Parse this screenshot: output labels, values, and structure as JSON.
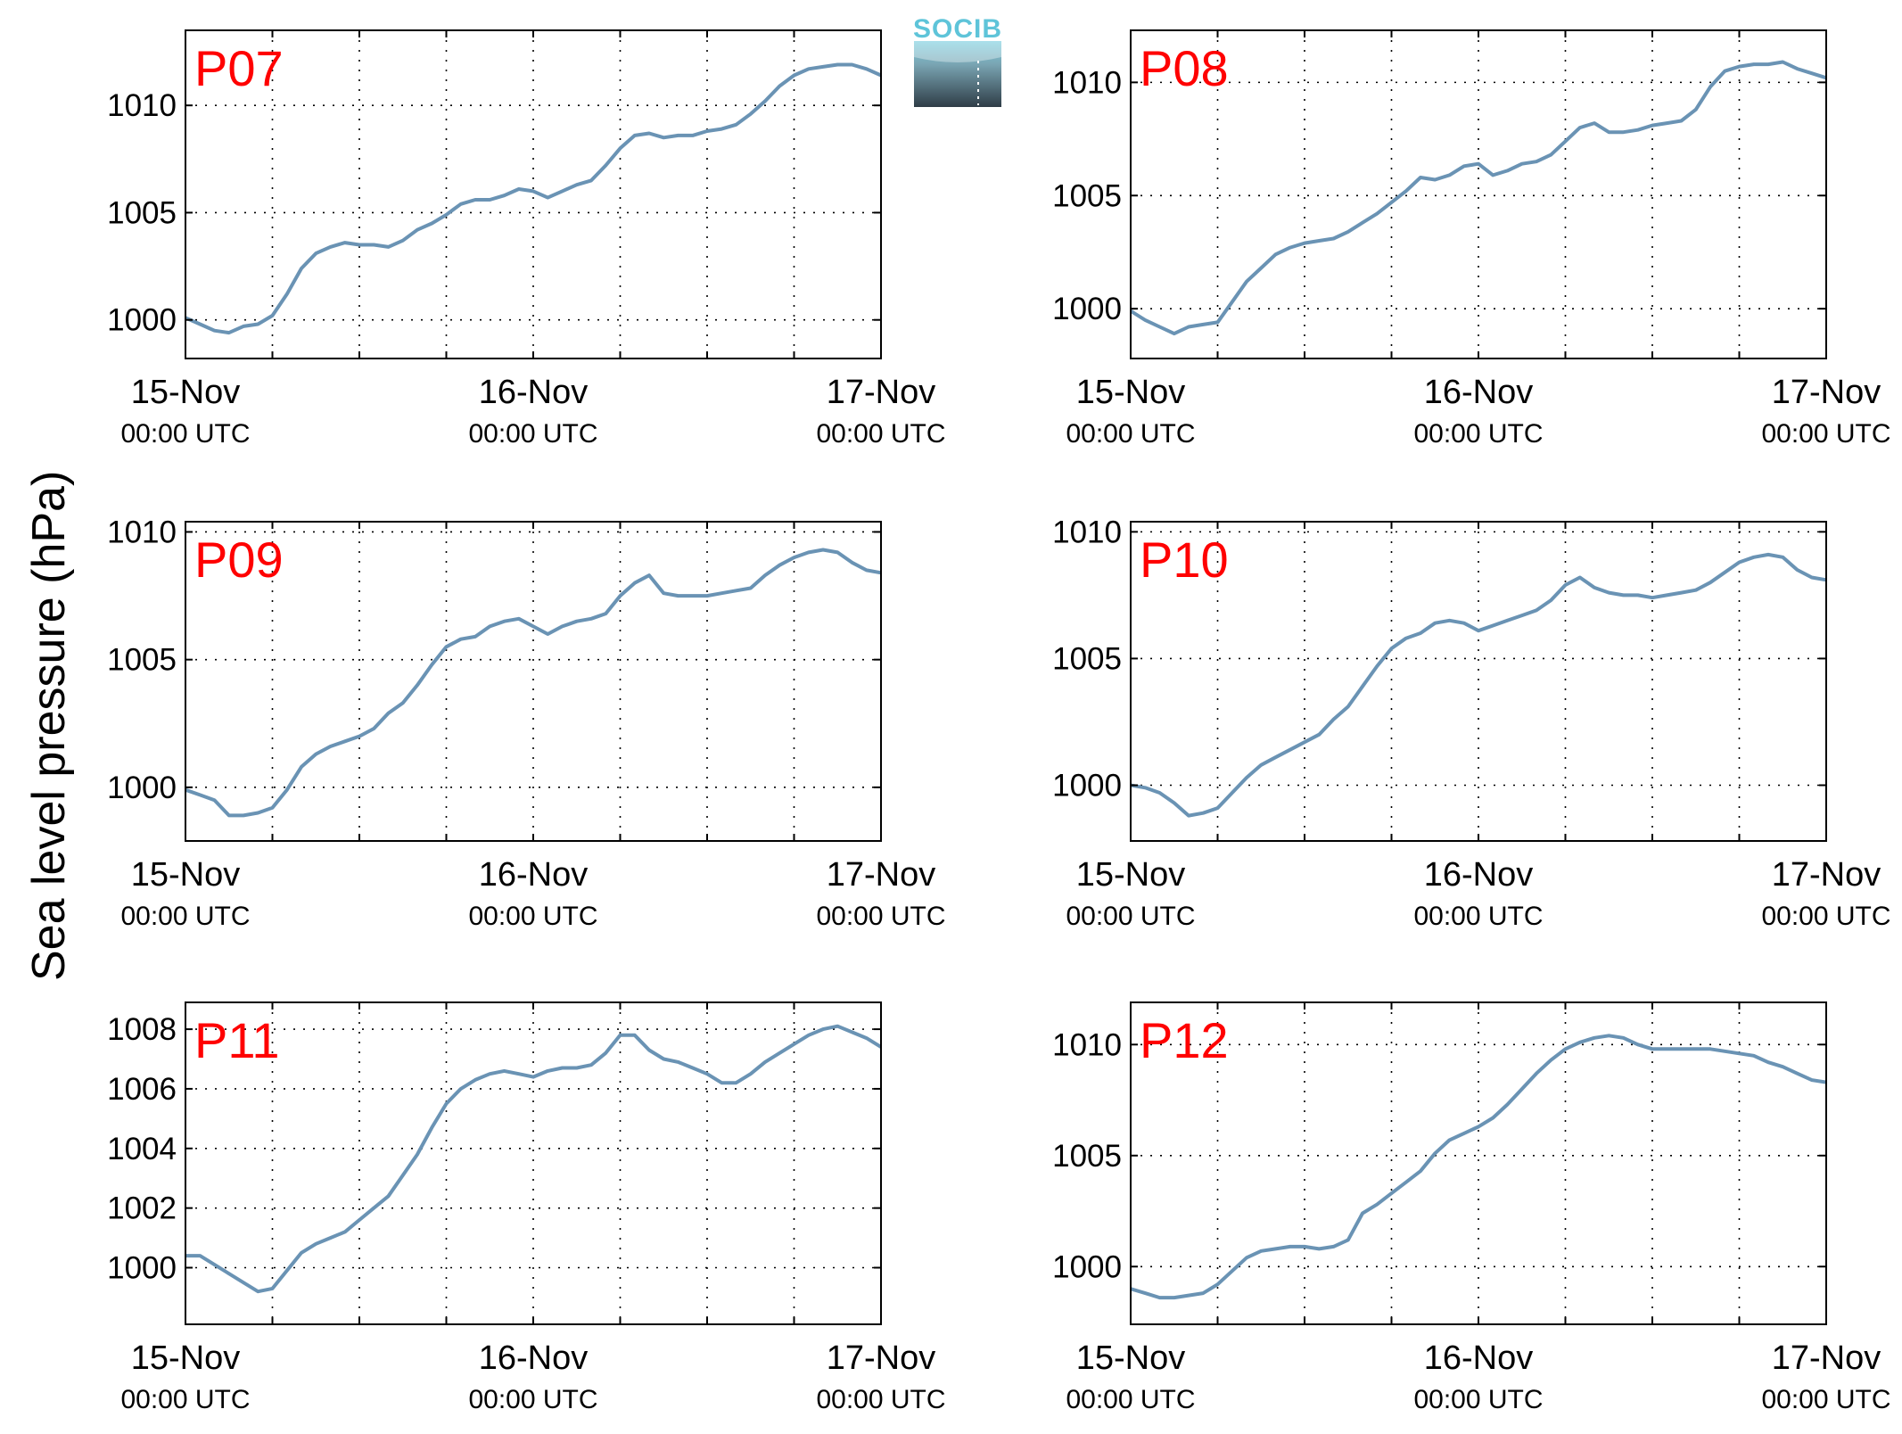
{
  "figure": {
    "ylabel": "Sea level pressure (hPa)",
    "logo_text": "SOCIB",
    "line_color": "#6a93b4",
    "label_color": "#ff0000"
  },
  "chart_data": [
    {
      "type": "line",
      "label": "P07",
      "x_ticks": [
        "15-Nov",
        "16-Nov",
        "17-Nov"
      ],
      "x_tick_sublabel": "00:00 UTC",
      "xlim": [
        0,
        48
      ],
      "ylim": [
        998.2,
        1013.5
      ],
      "y_ticks": [
        1000,
        1005,
        1010
      ],
      "grid": true,
      "x": [
        0,
        1,
        2,
        3,
        4,
        5,
        6,
        7,
        8,
        9,
        10,
        11,
        12,
        13,
        14,
        15,
        16,
        17,
        18,
        19,
        20,
        21,
        22,
        23,
        24,
        25,
        26,
        27,
        28,
        29,
        30,
        31,
        32,
        33,
        34,
        35,
        36,
        37,
        38,
        39,
        40,
        41,
        42,
        43,
        44,
        45,
        46,
        47,
        48
      ],
      "y": [
        1000.1,
        999.8,
        999.5,
        999.4,
        999.7,
        999.8,
        1000.2,
        1001.2,
        1002.4,
        1003.1,
        1003.4,
        1003.6,
        1003.5,
        1003.5,
        1003.4,
        1003.7,
        1004.2,
        1004.5,
        1004.9,
        1005.4,
        1005.6,
        1005.6,
        1005.8,
        1006.1,
        1006.0,
        1005.7,
        1006.0,
        1006.3,
        1006.5,
        1007.2,
        1008.0,
        1008.6,
        1008.7,
        1008.5,
        1008.6,
        1008.6,
        1008.8,
        1008.9,
        1009.1,
        1009.6,
        1010.2,
        1010.9,
        1011.4,
        1011.7,
        1011.8,
        1011.9,
        1011.9,
        1011.7,
        1011.4
      ]
    },
    {
      "type": "line",
      "label": "P08",
      "x_ticks": [
        "15-Nov",
        "16-Nov",
        "17-Nov"
      ],
      "x_tick_sublabel": "00:00 UTC",
      "xlim": [
        0,
        48
      ],
      "ylim": [
        997.8,
        1012.3
      ],
      "y_ticks": [
        1000,
        1005,
        1010
      ],
      "grid": true,
      "x": [
        0,
        1,
        2,
        3,
        4,
        5,
        6,
        7,
        8,
        9,
        10,
        11,
        12,
        13,
        14,
        15,
        16,
        17,
        18,
        19,
        20,
        21,
        22,
        23,
        24,
        25,
        26,
        27,
        28,
        29,
        30,
        31,
        32,
        33,
        34,
        35,
        36,
        37,
        38,
        39,
        40,
        41,
        42,
        43,
        44,
        45,
        46,
        47,
        48
      ],
      "y": [
        999.9,
        999.5,
        999.2,
        998.9,
        999.2,
        999.3,
        999.4,
        1000.3,
        1001.2,
        1001.8,
        1002.4,
        1002.7,
        1002.9,
        1003.0,
        1003.1,
        1003.4,
        1003.8,
        1004.2,
        1004.7,
        1005.2,
        1005.8,
        1005.7,
        1005.9,
        1006.3,
        1006.4,
        1005.9,
        1006.1,
        1006.4,
        1006.5,
        1006.8,
        1007.4,
        1008.0,
        1008.2,
        1007.8,
        1007.8,
        1007.9,
        1008.1,
        1008.2,
        1008.3,
        1008.8,
        1009.8,
        1010.5,
        1010.7,
        1010.8,
        1010.8,
        1010.9,
        1010.6,
        1010.4,
        1010.2
      ]
    },
    {
      "type": "line",
      "label": "P09",
      "x_ticks": [
        "15-Nov",
        "16-Nov",
        "17-Nov"
      ],
      "x_tick_sublabel": "00:00 UTC",
      "xlim": [
        0,
        48
      ],
      "ylim": [
        997.9,
        1010.4
      ],
      "y_ticks": [
        1000,
        1005,
        1010
      ],
      "grid": true,
      "x": [
        0,
        1,
        2,
        3,
        4,
        5,
        6,
        7,
        8,
        9,
        10,
        11,
        12,
        13,
        14,
        15,
        16,
        17,
        18,
        19,
        20,
        21,
        22,
        23,
        24,
        25,
        26,
        27,
        28,
        29,
        30,
        31,
        32,
        33,
        34,
        35,
        36,
        37,
        38,
        39,
        40,
        41,
        42,
        43,
        44,
        45,
        46,
        47,
        48
      ],
      "y": [
        999.9,
        999.7,
        999.5,
        998.9,
        998.9,
        999.0,
        999.2,
        999.9,
        1000.8,
        1001.3,
        1001.6,
        1001.8,
        1002.0,
        1002.3,
        1002.9,
        1003.3,
        1004.0,
        1004.8,
        1005.5,
        1005.8,
        1005.9,
        1006.3,
        1006.5,
        1006.6,
        1006.3,
        1006.0,
        1006.3,
        1006.5,
        1006.6,
        1006.8,
        1007.5,
        1008.0,
        1008.3,
        1007.6,
        1007.5,
        1007.5,
        1007.5,
        1007.6,
        1007.7,
        1007.8,
        1008.3,
        1008.7,
        1009.0,
        1009.2,
        1009.3,
        1009.2,
        1008.8,
        1008.5,
        1008.4
      ]
    },
    {
      "type": "line",
      "label": "P10",
      "x_ticks": [
        "15-Nov",
        "16-Nov",
        "17-Nov"
      ],
      "x_tick_sublabel": "00:00 UTC",
      "xlim": [
        0,
        48
      ],
      "ylim": [
        997.8,
        1010.4
      ],
      "y_ticks": [
        1000,
        1005,
        1010
      ],
      "grid": true,
      "x": [
        0,
        1,
        2,
        3,
        4,
        5,
        6,
        7,
        8,
        9,
        10,
        11,
        12,
        13,
        14,
        15,
        16,
        17,
        18,
        19,
        20,
        21,
        22,
        23,
        24,
        25,
        26,
        27,
        28,
        29,
        30,
        31,
        32,
        33,
        34,
        35,
        36,
        37,
        38,
        39,
        40,
        41,
        42,
        43,
        44,
        45,
        46,
        47,
        48
      ],
      "y": [
        1000.0,
        999.9,
        999.7,
        999.3,
        998.8,
        998.9,
        999.1,
        999.7,
        1000.3,
        1000.8,
        1001.1,
        1001.4,
        1001.7,
        1002.0,
        1002.6,
        1003.1,
        1003.9,
        1004.7,
        1005.4,
        1005.8,
        1006.0,
        1006.4,
        1006.5,
        1006.4,
        1006.1,
        1006.3,
        1006.5,
        1006.7,
        1006.9,
        1007.3,
        1007.9,
        1008.2,
        1007.8,
        1007.6,
        1007.5,
        1007.5,
        1007.4,
        1007.5,
        1007.6,
        1007.7,
        1008.0,
        1008.4,
        1008.8,
        1009.0,
        1009.1,
        1009.0,
        1008.5,
        1008.2,
        1008.1
      ]
    },
    {
      "type": "line",
      "label": "P11",
      "x_ticks": [
        "15-Nov",
        "16-Nov",
        "17-Nov"
      ],
      "x_tick_sublabel": "00:00 UTC",
      "xlim": [
        0,
        48
      ],
      "ylim": [
        998.1,
        1008.9
      ],
      "y_ticks": [
        1000,
        1002,
        1004,
        1006,
        1008
      ],
      "grid": true,
      "x": [
        0,
        1,
        2,
        3,
        4,
        5,
        6,
        7,
        8,
        9,
        10,
        11,
        12,
        13,
        14,
        15,
        16,
        17,
        18,
        19,
        20,
        21,
        22,
        23,
        24,
        25,
        26,
        27,
        28,
        29,
        30,
        31,
        32,
        33,
        34,
        35,
        36,
        37,
        38,
        39,
        40,
        41,
        42,
        43,
        44,
        45,
        46,
        47,
        48
      ],
      "y": [
        1000.4,
        1000.4,
        1000.1,
        999.8,
        999.5,
        999.2,
        999.3,
        999.9,
        1000.5,
        1000.8,
        1001.0,
        1001.2,
        1001.6,
        1002.0,
        1002.4,
        1003.1,
        1003.8,
        1004.7,
        1005.5,
        1006.0,
        1006.3,
        1006.5,
        1006.6,
        1006.5,
        1006.4,
        1006.6,
        1006.7,
        1006.7,
        1006.8,
        1007.2,
        1007.8,
        1007.8,
        1007.3,
        1007.0,
        1006.9,
        1006.7,
        1006.5,
        1006.2,
        1006.2,
        1006.5,
        1006.9,
        1007.2,
        1007.5,
        1007.8,
        1008.0,
        1008.1,
        1007.9,
        1007.7,
        1007.4
      ]
    },
    {
      "type": "line",
      "label": "P12",
      "x_ticks": [
        "15-Nov",
        "16-Nov",
        "17-Nov"
      ],
      "x_tick_sublabel": "00:00 UTC",
      "xlim": [
        0,
        48
      ],
      "ylim": [
        997.4,
        1011.9
      ],
      "y_ticks": [
        1000,
        1005,
        1010
      ],
      "grid": true,
      "x": [
        0,
        1,
        2,
        3,
        4,
        5,
        6,
        7,
        8,
        9,
        10,
        11,
        12,
        13,
        14,
        15,
        16,
        17,
        18,
        19,
        20,
        21,
        22,
        23,
        24,
        25,
        26,
        27,
        28,
        29,
        30,
        31,
        32,
        33,
        34,
        35,
        36,
        37,
        38,
        39,
        40,
        41,
        42,
        43,
        44,
        45,
        46,
        47,
        48
      ],
      "y": [
        999.0,
        998.8,
        998.6,
        998.6,
        998.7,
        998.8,
        999.2,
        999.8,
        1000.4,
        1000.7,
        1000.8,
        1000.9,
        1000.9,
        1000.8,
        1000.9,
        1001.2,
        1002.4,
        1002.8,
        1003.3,
        1003.8,
        1004.3,
        1005.1,
        1005.7,
        1006.0,
        1006.3,
        1006.7,
        1007.3,
        1008.0,
        1008.7,
        1009.3,
        1009.8,
        1010.1,
        1010.3,
        1010.4,
        1010.3,
        1010.0,
        1009.8,
        1009.8,
        1009.8,
        1009.8,
        1009.8,
        1009.7,
        1009.6,
        1009.5,
        1009.2,
        1009.0,
        1008.7,
        1008.4,
        1008.3
      ]
    }
  ]
}
